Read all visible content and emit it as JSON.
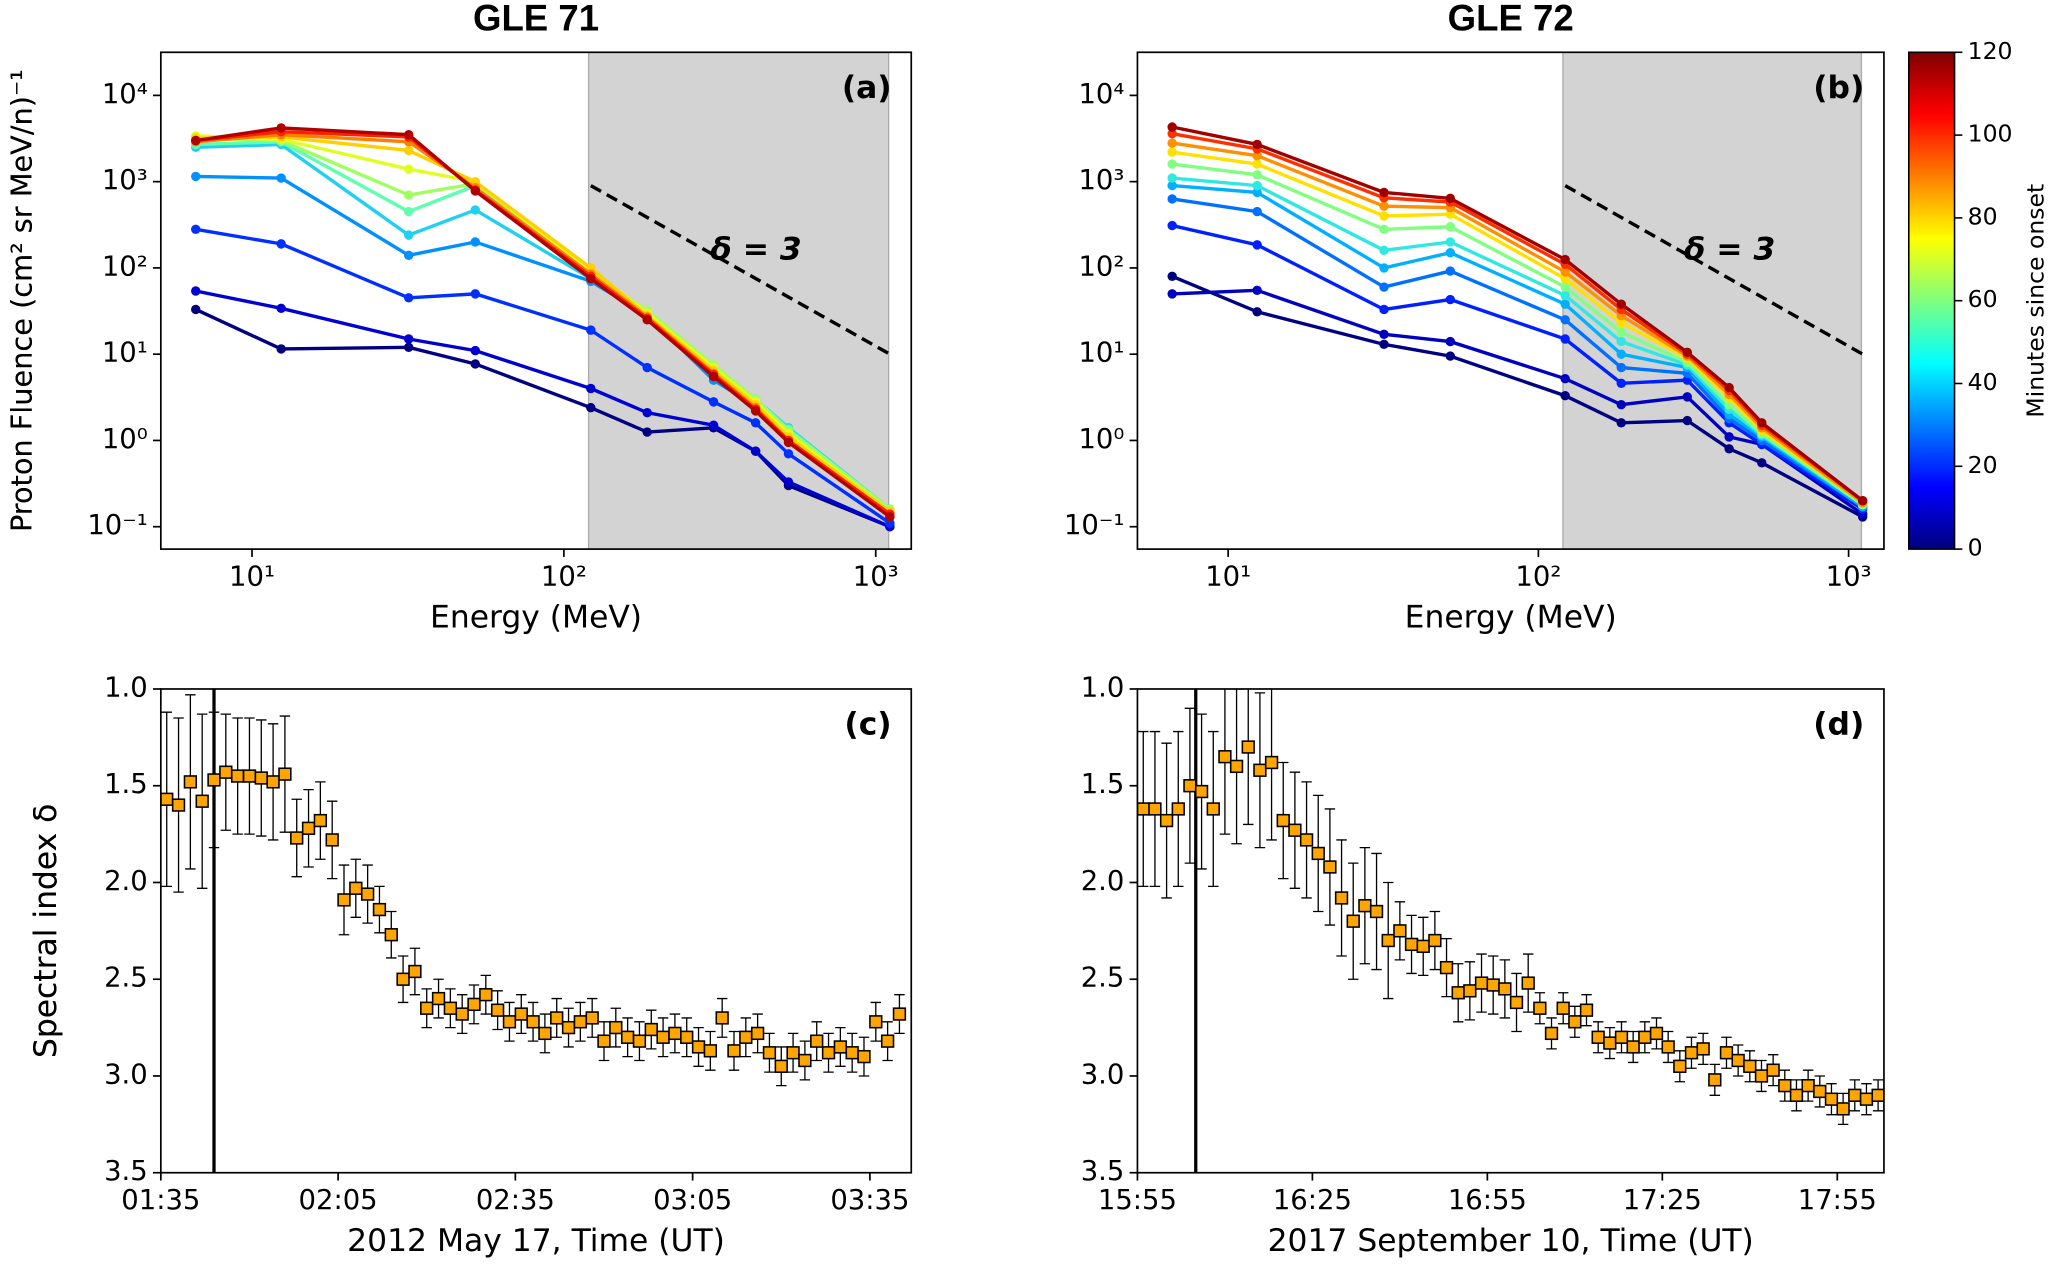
{
  "chart_data": [
    {
      "type": "line",
      "title": "GLE 71",
      "panel_label": "(a)",
      "x_label": "Energy  (MeV)",
      "y_label": "Proton  Fluence (cm² sr MeV/n)⁻¹",
      "log_x": true,
      "log_y": true,
      "xlim": [
        5.1,
        1300
      ],
      "ylim": [
        0.055,
        31600
      ],
      "xticks": [
        {
          "value": 10,
          "label": "10¹"
        },
        {
          "value": 100,
          "label": "10²"
        },
        {
          "value": 1000,
          "label": "10³"
        }
      ],
      "yticks": [
        {
          "value": 0.1,
          "label": "10⁻¹"
        },
        {
          "value": 1,
          "label": "10⁰"
        },
        {
          "value": 10,
          "label": "10¹"
        },
        {
          "value": 100,
          "label": "10²"
        },
        {
          "value": 1000,
          "label": "10³"
        },
        {
          "value": 10000,
          "label": "10⁴"
        }
      ],
      "shade_x": [
        120,
        1100
      ],
      "shade_color": "#d3d3d3",
      "reference_line": {
        "x": [
          122,
          1110
        ],
        "y": [
          900,
          10
        ]
      },
      "annotation": "δ = 3",
      "x": [
        6.6,
        12.4,
        31.8,
        52,
        122,
        185,
        302,
        412,
        525,
        1110
      ],
      "series": [
        {
          "color": "#000080",
          "values": [
            33,
            11.5,
            12,
            7.7,
            2.4,
            1.25,
            1.4,
            0.75,
            0.3,
            0.1
          ]
        },
        {
          "color": "#0000d0",
          "values": [
            54,
            34,
            15,
            11,
            4,
            2.1,
            1.5,
            0.75,
            0.33,
            0.1
          ]
        },
        {
          "color": "#0030ff",
          "values": [
            280,
            190,
            45,
            50,
            19,
            7,
            2.8,
            1.6,
            0.7,
            0.11
          ]
        },
        {
          "color": "#0090ff",
          "values": [
            1150,
            1100,
            140,
            200,
            70,
            28,
            5,
            2.5,
            1.1,
            0.13
          ]
        },
        {
          "color": "#20d0f0",
          "values": [
            2500,
            2700,
            240,
            470,
            75,
            30,
            7,
            3,
            1.4,
            0.16
          ]
        },
        {
          "color": "#60ffb0",
          "values": [
            2700,
            2900,
            450,
            900,
            80,
            31,
            7.2,
            3,
            1.35,
            0.16
          ]
        },
        {
          "color": "#a0ff60",
          "values": [
            3200,
            3000,
            700,
            950,
            85,
            32,
            7.5,
            3,
            1.3,
            0.16
          ]
        },
        {
          "color": "#e0ff20",
          "values": [
            3400,
            3100,
            1400,
            1000,
            95,
            30,
            7,
            2.8,
            1.2,
            0.15
          ]
        },
        {
          "color": "#ffd000",
          "values": [
            3200,
            3300,
            2300,
            1000,
            100,
            28,
            6.5,
            2.6,
            1.1,
            0.15
          ]
        },
        {
          "color": "#ff8000",
          "values": [
            2900,
            3500,
            2900,
            850,
            85,
            27,
            6,
            2.4,
            1.0,
            0.14
          ]
        },
        {
          "color": "#ff2000",
          "values": [
            3000,
            3800,
            3300,
            800,
            80,
            26,
            5.8,
            2.3,
            1.0,
            0.14
          ]
        },
        {
          "color": "#b00000",
          "values": [
            3000,
            4200,
            3500,
            780,
            75,
            25,
            5.5,
            2.2,
            0.95,
            0.13
          ]
        }
      ]
    },
    {
      "type": "line",
      "title": "GLE 72",
      "panel_label": "(b)",
      "x_label": "Energy  (MeV)",
      "y_label": "Proton  Fluence (cm² sr MeV/n)⁻¹",
      "log_x": true,
      "log_y": true,
      "xlim": [
        5.1,
        1300
      ],
      "ylim": [
        0.055,
        31600
      ],
      "xticks": [
        {
          "value": 10,
          "label": "10¹"
        },
        {
          "value": 100,
          "label": "10²"
        },
        {
          "value": 1000,
          "label": "10³"
        }
      ],
      "yticks": [
        {
          "value": 0.1,
          "label": "10⁻¹"
        },
        {
          "value": 1,
          "label": "10⁰"
        },
        {
          "value": 10,
          "label": "10¹"
        },
        {
          "value": 100,
          "label": "10²"
        },
        {
          "value": 1000,
          "label": "10³"
        },
        {
          "value": 10000,
          "label": "10⁴"
        }
      ],
      "shade_x": [
        120,
        1100
      ],
      "shade_color": "#d3d3d3",
      "reference_line": {
        "x": [
          122,
          1110
        ],
        "y": [
          900,
          10
        ]
      },
      "annotation": "δ = 3",
      "x": [
        6.6,
        12.4,
        31.8,
        52,
        122,
        185,
        302,
        412,
        525,
        1110
      ],
      "series": [
        {
          "color": "#000080",
          "values": [
            80,
            31,
            13,
            9.5,
            3.3,
            1.6,
            1.7,
            0.8,
            0.55,
            0.13
          ]
        },
        {
          "color": "#0000c0",
          "values": [
            50,
            55,
            17,
            14,
            5.2,
            2.6,
            3.2,
            1.1,
            0.9,
            0.14
          ]
        },
        {
          "color": "#0020ff",
          "values": [
            310,
            185,
            33,
            43,
            15,
            4.6,
            5,
            1.6,
            0.9,
            0.16
          ]
        },
        {
          "color": "#0070ff",
          "values": [
            630,
            450,
            60,
            92,
            25,
            7,
            6,
            1.8,
            1.0,
            0.17
          ]
        },
        {
          "color": "#00b0ff",
          "values": [
            900,
            750,
            100,
            150,
            38,
            10,
            7,
            2.0,
            1.1,
            0.17
          ]
        },
        {
          "color": "#30e8e0",
          "values": [
            1100,
            900,
            160,
            200,
            48,
            14,
            7.5,
            2.3,
            1.15,
            0.18
          ]
        },
        {
          "color": "#80ff80",
          "values": [
            1600,
            1200,
            280,
            300,
            60,
            18,
            8,
            2.6,
            1.2,
            0.18
          ]
        },
        {
          "color": "#ffe000",
          "values": [
            2200,
            1600,
            400,
            420,
            75,
            23,
            9,
            3.1,
            1.3,
            0.19
          ]
        },
        {
          "color": "#ff9000",
          "values": [
            2800,
            2000,
            520,
            500,
            90,
            28,
            9.5,
            3.4,
            1.4,
            0.19
          ]
        },
        {
          "color": "#ff3000",
          "values": [
            3600,
            2400,
            650,
            580,
            110,
            33,
            10,
            3.8,
            1.5,
            0.2
          ]
        },
        {
          "color": "#a00000",
          "values": [
            4300,
            2700,
            750,
            640,
            125,
            38,
            10.5,
            4.1,
            1.6,
            0.2
          ]
        }
      ],
      "colorbar": {
        "label": "Minutes since onset",
        "lim": [
          0,
          120
        ],
        "ticks": [
          0,
          20,
          40,
          60,
          80,
          100,
          120
        ],
        "colors": [
          "#00007f",
          "#0000ff",
          "#007fff",
          "#00ffff",
          "#7fff7f",
          "#ffff00",
          "#ff7f00",
          "#ff0000",
          "#7f0000"
        ]
      }
    },
    {
      "type": "scatter",
      "panel_label": "(c)",
      "x_label": "2012 May 17, Time (UT)",
      "y_label": "Spectral index  δ",
      "y_inverted": true,
      "xlim": [
        "01:35",
        "03:42"
      ],
      "ylim": [
        1.0,
        3.5
      ],
      "xticks": [
        "01:35",
        "02:05",
        "02:35",
        "03:05",
        "03:35"
      ],
      "yticks": [
        {
          "value": 1,
          "label": "1.0"
        },
        1.5,
        {
          "value": 2,
          "label": "2.0"
        },
        2.5,
        {
          "value": 3,
          "label": "3.0"
        },
        3.5
      ],
      "onset": "01:44",
      "color": "#ffa500",
      "x": [
        "01:36",
        "01:38",
        "01:40",
        "01:42",
        "01:44",
        "01:46",
        "01:48",
        "01:50",
        "01:52",
        "01:54",
        "01:56",
        "01:58",
        "02:00",
        "02:02",
        "02:04",
        "02:06",
        "02:08",
        "02:10",
        "02:12",
        "02:14",
        "02:16",
        "02:18",
        "02:20",
        "02:22",
        "02:24",
        "02:26",
        "02:28",
        "02:30",
        "02:32",
        "02:34",
        "02:36",
        "02:38",
        "02:40",
        "02:42",
        "02:44",
        "02:46",
        "02:48",
        "02:50",
        "02:52",
        "02:54",
        "02:56",
        "02:58",
        "03:00",
        "03:02",
        "03:04",
        "03:06",
        "03:08",
        "03:10",
        "03:12",
        "03:14",
        "03:16",
        "03:18",
        "03:20",
        "03:22",
        "03:24",
        "03:26",
        "03:28",
        "03:30",
        "03:32",
        "03:34",
        "03:36",
        "03:38",
        "03:40"
      ],
      "values": [
        1.57,
        1.6,
        1.48,
        1.58,
        1.47,
        1.43,
        1.45,
        1.45,
        1.46,
        1.48,
        1.44,
        1.77,
        1.72,
        1.68,
        1.78,
        2.09,
        2.03,
        2.06,
        2.14,
        2.27,
        2.5,
        2.46,
        2.65,
        2.6,
        2.65,
        2.68,
        2.63,
        2.58,
        2.66,
        2.72,
        2.68,
        2.72,
        2.78,
        2.7,
        2.75,
        2.72,
        2.7,
        2.82,
        2.75,
        2.8,
        2.82,
        2.76,
        2.8,
        2.78,
        2.8,
        2.85,
        2.87,
        2.7,
        2.87,
        2.8,
        2.78,
        2.88,
        2.95,
        2.88,
        2.92,
        2.82,
        2.88,
        2.85,
        2.88,
        2.9,
        2.72,
        2.82,
        2.68
      ],
      "errors": [
        0.45,
        0.45,
        0.45,
        0.45,
        0.35,
        0.3,
        0.3,
        0.3,
        0.3,
        0.3,
        0.3,
        0.2,
        0.2,
        0.2,
        0.2,
        0.18,
        0.15,
        0.15,
        0.12,
        0.12,
        0.12,
        0.12,
        0.1,
        0.1,
        0.1,
        0.1,
        0.1,
        0.1,
        0.1,
        0.1,
        0.1,
        0.1,
        0.1,
        0.1,
        0.1,
        0.1,
        0.1,
        0.1,
        0.1,
        0.1,
        0.1,
        0.1,
        0.1,
        0.1,
        0.1,
        0.1,
        0.1,
        0.1,
        0.1,
        0.1,
        0.1,
        0.1,
        0.1,
        0.1,
        0.1,
        0.1,
        0.1,
        0.1,
        0.1,
        0.1,
        0.1,
        0.1,
        0.1
      ]
    },
    {
      "type": "scatter",
      "panel_label": "(d)",
      "x_label": "2017 September 10, Time (UT)",
      "y_label": "Spectral index  δ",
      "y_inverted": true,
      "xlim": [
        "15:55",
        "18:03"
      ],
      "ylim": [
        1.0,
        3.5
      ],
      "xticks": [
        "15:55",
        "16:25",
        "16:55",
        "17:25",
        "17:55"
      ],
      "yticks": [
        {
          "value": 1,
          "label": "1.0"
        },
        1.5,
        {
          "value": 2,
          "label": "2.0"
        },
        2.5,
        {
          "value": 3,
          "label": "3.0"
        },
        3.5
      ],
      "onset": "16:05",
      "color": "#ffa500",
      "x": [
        "15:56",
        "15:58",
        "16:00",
        "16:02",
        "16:04",
        "16:06",
        "16:08",
        "16:10",
        "16:12",
        "16:14",
        "16:16",
        "16:18",
        "16:20",
        "16:22",
        "16:24",
        "16:26",
        "16:28",
        "16:30",
        "16:32",
        "16:34",
        "16:36",
        "16:38",
        "16:40",
        "16:42",
        "16:44",
        "16:46",
        "16:48",
        "16:50",
        "16:52",
        "16:54",
        "16:56",
        "16:58",
        "17:00",
        "17:02",
        "17:04",
        "17:06",
        "17:08",
        "17:10",
        "17:12",
        "17:14",
        "17:16",
        "17:18",
        "17:20",
        "17:22",
        "17:24",
        "17:26",
        "17:28",
        "17:30",
        "17:32",
        "17:34",
        "17:36",
        "17:38",
        "17:40",
        "17:42",
        "17:44",
        "17:46",
        "17:48",
        "17:50",
        "17:52",
        "17:54",
        "17:56",
        "17:58",
        "18:00",
        "18:02"
      ],
      "values": [
        1.62,
        1.62,
        1.68,
        1.62,
        1.5,
        1.53,
        1.62,
        1.35,
        1.4,
        1.3,
        1.42,
        1.38,
        1.68,
        1.73,
        1.78,
        1.85,
        1.92,
        2.08,
        2.2,
        2.12,
        2.15,
        2.3,
        2.25,
        2.32,
        2.33,
        2.3,
        2.44,
        2.57,
        2.56,
        2.52,
        2.53,
        2.55,
        2.62,
        2.52,
        2.65,
        2.78,
        2.65,
        2.72,
        2.66,
        2.8,
        2.83,
        2.8,
        2.85,
        2.8,
        2.78,
        2.85,
        2.95,
        2.88,
        2.86,
        3.02,
        2.88,
        2.92,
        2.95,
        3.0,
        2.97,
        3.05,
        3.1,
        3.05,
        3.08,
        3.12,
        3.17,
        3.1,
        3.12,
        3.1
      ],
      "errors": [
        0.4,
        0.4,
        0.4,
        0.4,
        0.4,
        0.4,
        0.4,
        0.4,
        0.4,
        0.4,
        0.4,
        0.4,
        0.3,
        0.3,
        0.3,
        0.3,
        0.3,
        0.3,
        0.3,
        0.3,
        0.3,
        0.3,
        0.15,
        0.15,
        0.15,
        0.15,
        0.15,
        0.15,
        0.15,
        0.15,
        0.15,
        0.15,
        0.15,
        0.15,
        0.08,
        0.08,
        0.08,
        0.08,
        0.08,
        0.08,
        0.08,
        0.08,
        0.08,
        0.08,
        0.08,
        0.08,
        0.08,
        0.08,
        0.08,
        0.08,
        0.08,
        0.08,
        0.08,
        0.08,
        0.08,
        0.08,
        0.08,
        0.08,
        0.08,
        0.08,
        0.08,
        0.08,
        0.08,
        0.08
      ]
    }
  ]
}
